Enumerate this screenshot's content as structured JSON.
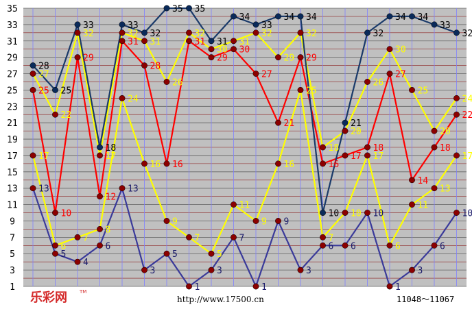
{
  "chart_data": {
    "type": "line",
    "title": "",
    "xlabel": "",
    "ylabel": "",
    "ylim": [
      1,
      35
    ],
    "yticks": [
      1,
      3,
      5,
      7,
      9,
      11,
      13,
      15,
      17,
      19,
      21,
      23,
      25,
      27,
      29,
      31,
      33,
      35
    ],
    "grid": true,
    "x": [
      1,
      2,
      3,
      4,
      5,
      6,
      7,
      8,
      9,
      10,
      11,
      12,
      13,
      14,
      15,
      16,
      17,
      18,
      19,
      20
    ],
    "series": [
      {
        "color": "#1a3a6a",
        "label_color": "#000000",
        "marker": "#1a3a6a",
        "values": [
          28,
          25,
          33,
          18,
          33,
          32,
          35,
          35,
          31,
          34,
          33,
          34,
          34,
          10,
          21,
          32,
          34,
          34,
          33,
          32
        ]
      },
      {
        "color": "#ff0000",
        "label_color": "#ff0000",
        "marker": "#8b0000",
        "values": [
          25,
          10,
          29,
          12,
          31,
          28,
          16,
          31,
          29,
          30,
          27,
          21,
          29,
          16,
          17,
          18,
          27,
          14,
          18,
          22
        ]
      },
      {
        "color": "#ffff00",
        "label_color": "#ffff00",
        "marker": "#8b0000",
        "values": [
          17,
          6,
          7,
          8,
          24,
          16,
          9,
          7,
          5,
          11,
          9,
          16,
          25,
          7,
          10,
          17,
          6,
          11,
          13,
          17
        ],
        "extra_points": [
          [
            1,
            27
          ],
          [
            2,
            22
          ],
          [
            3,
            32
          ],
          [
            4,
            17
          ],
          [
            5,
            32
          ],
          [
            6,
            31
          ],
          [
            7,
            26
          ],
          [
            8,
            32
          ],
          [
            9,
            30
          ],
          [
            10,
            31
          ],
          [
            11,
            32
          ],
          [
            12,
            29
          ],
          [
            13,
            32
          ],
          [
            14,
            18
          ],
          [
            15,
            20
          ],
          [
            16,
            26
          ],
          [
            17,
            30
          ],
          [
            18,
            25
          ],
          [
            19,
            20
          ],
          [
            20,
            24
          ]
        ]
      },
      {
        "color": "#3a3a9a",
        "label_color": "#1a1a6a",
        "marker": "#8b0000",
        "values": [
          13,
          5,
          4,
          6,
          13,
          3,
          5,
          1,
          3,
          7,
          1,
          9,
          3,
          6,
          6,
          10,
          1,
          3,
          6,
          10
        ]
      }
    ],
    "footer": {
      "logo": "乐彩网",
      "url": "http://www.17500.cn",
      "range": "11048～11067"
    },
    "colors": {
      "plot_bg": "#c0c0c0",
      "hgrid": "#8b2020",
      "vgrid": "#8080ff"
    }
  }
}
